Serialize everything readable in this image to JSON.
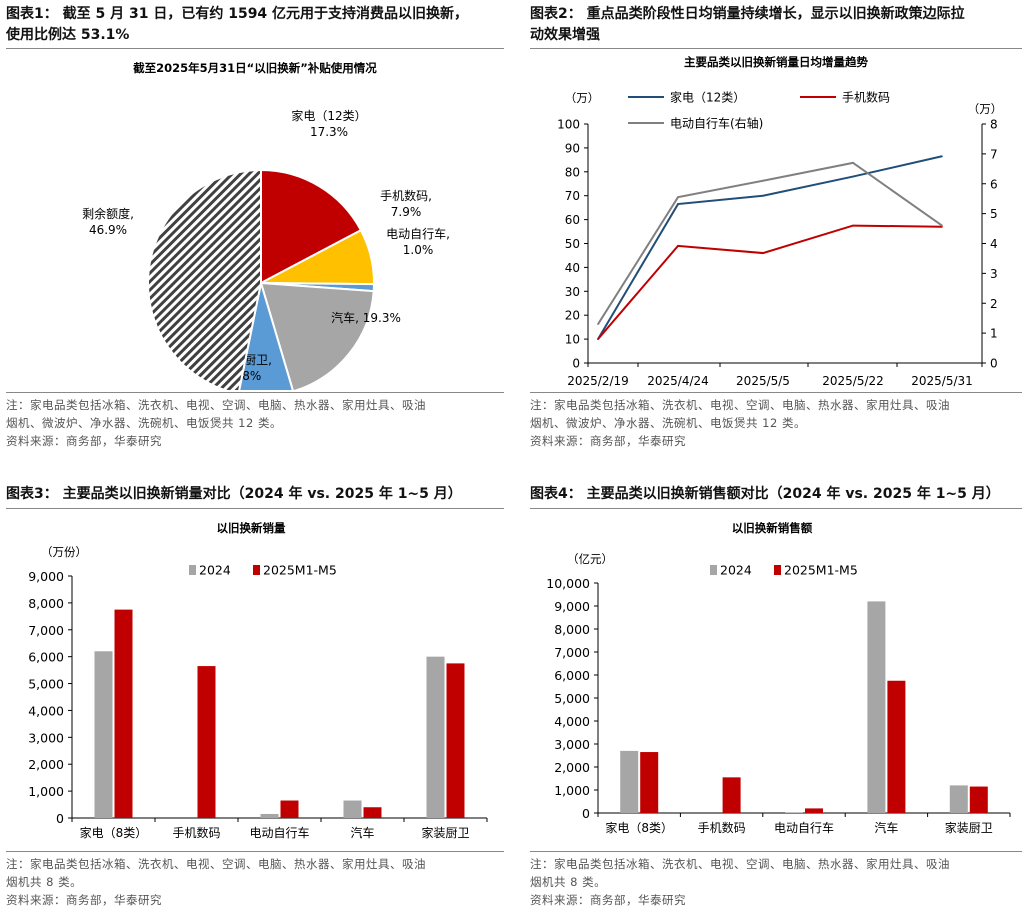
{
  "fig1": {
    "title_l1": "图表1： 截至 5 月 31 日，已有约 1594 亿元用于支持消费品以旧换新，",
    "title_l2": "使用比例达 53.1%",
    "note_l1": "注：家电品类包括冰箱、洗衣机、电视、空调、电脑、热水器、家用灶具、吸油",
    "note_l2": "烟机、微波炉、净水器、洗碗机、电饭煲共 12 类。",
    "source": "资料来源：商务部，华泰研究",
    "chart_data": {
      "type": "pie",
      "title": "截至2025年5月31日“以旧换新”补贴使用情况",
      "slices": [
        {
          "label": "家电（12类）",
          "value": 17.3,
          "value_label": "17.3%",
          "color": "#C00000"
        },
        {
          "label": "手机数码,",
          "value": 7.9,
          "value_label": "7.9%",
          "color": "#FFC000"
        },
        {
          "label": "电动自行车,",
          "value": 1.0,
          "value_label": "1.0%",
          "color": "#5B9BD5"
        },
        {
          "label": "汽车, 19.3%",
          "value": 19.3,
          "value_label": "",
          "color": "#A6A6A6"
        },
        {
          "label": "家装厨卫,",
          "value": 7.8,
          "value_label": "7.8%",
          "color": "#5B9BD5"
        },
        {
          "label": "剩余额度,",
          "value": 46.9,
          "value_label": "46.9%",
          "color": "hatch"
        }
      ]
    }
  },
  "fig2": {
    "title_l1": "图表2： 重点品类阶段性日均销量持续增长，显示以旧换新政策边际拉",
    "title_l2": "动效果增强",
    "note_l1": "注：家电品类包括冰箱、洗衣机、电视、空调、电脑、热水器、家用灶具、吸油",
    "note_l2": "烟机、微波炉、净水器、洗碗机、电饭煲共 12 类。",
    "source": "资料来源：商务部，华泰研究",
    "chart_data": {
      "type": "line",
      "title": "主要品类以旧换新销量日均增量趋势",
      "ylabel_left": "（万）",
      "ylabel_right": "（万）",
      "x": [
        "2025/2/19",
        "2025/4/24",
        "2025/5/5",
        "2025/5/22",
        "2025/5/31"
      ],
      "ylim_left": [
        0,
        100
      ],
      "yticks_left": [
        "0",
        "10",
        "20",
        "30",
        "40",
        "50",
        "60",
        "70",
        "80",
        "90",
        "100"
      ],
      "ylim_right": [
        0,
        8
      ],
      "yticks_right": [
        "0",
        "1",
        "2",
        "3",
        "4",
        "5",
        "6",
        "7",
        "8"
      ],
      "series": [
        {
          "name": "家电（12类）",
          "axis": "left",
          "color": "#1F4E79",
          "values": [
            10,
            66.5,
            70,
            78,
            86.5
          ]
        },
        {
          "name": "手机数码",
          "axis": "left",
          "color": "#C00000",
          "values": [
            10,
            49,
            46,
            57.5,
            57
          ]
        },
        {
          "name": "电动自行车(右轴)",
          "axis": "right",
          "color": "#808080",
          "values": [
            1.3,
            5.55,
            6.1,
            6.7,
            4.6
          ]
        }
      ]
    }
  },
  "fig3": {
    "title_l1": "图表3： 主要品类以旧换新销量对比（2024 年 vs. 2025 年 1~5 月）",
    "note_l1": "注：家电品类包括冰箱、洗衣机、电视、空调、电脑、热水器、家用灶具、吸油",
    "note_l2": "烟机共 8 类。",
    "source": "资料来源：商务部，华泰研究",
    "chart_data": {
      "type": "bar",
      "title": "以旧换新销量",
      "ylabel": "（万份）",
      "categories": [
        "家电（8类）",
        "手机数码",
        "电动自行车",
        "汽车",
        "家装厨卫"
      ],
      "ylim": [
        0,
        9000
      ],
      "yticks": [
        "0",
        "1,000",
        "2,000",
        "3,000",
        "4,000",
        "5,000",
        "6,000",
        "7,000",
        "8,000",
        "9,000"
      ],
      "series": [
        {
          "name": "2024",
          "color": "#A6A6A6",
          "values": [
            6200,
            0,
            150,
            650,
            6000
          ]
        },
        {
          "name": "2025M1-M5",
          "color": "#C00000",
          "values": [
            7750,
            5650,
            650,
            400,
            5750
          ]
        }
      ]
    }
  },
  "fig4": {
    "title_l1": "图表4： 主要品类以旧换新销售额对比（2024 年 vs. 2025 年 1~5 月）",
    "note_l1": "注：家电品类包括冰箱、洗衣机、电视、空调、电脑、热水器、家用灶具、吸油",
    "note_l2": "烟机共 8 类。",
    "source": "资料来源：商务部，华泰研究",
    "chart_data": {
      "type": "bar",
      "title": "以旧换新销售额",
      "ylabel": "（亿元）",
      "categories": [
        "家电（8类）",
        "手机数码",
        "电动自行车",
        "汽车",
        "家装厨卫"
      ],
      "ylim": [
        0,
        10000
      ],
      "yticks": [
        "0",
        "1,000",
        "2,000",
        "3,000",
        "4,000",
        "5,000",
        "6,000",
        "7,000",
        "8,000",
        "9,000",
        "10,000"
      ],
      "series": [
        {
          "name": "2024",
          "color": "#A6A6A6",
          "values": [
            2700,
            0,
            30,
            9200,
            1200
          ]
        },
        {
          "name": "2025M1-M5",
          "color": "#C00000",
          "values": [
            2650,
            1550,
            200,
            5750,
            1150
          ]
        }
      ]
    }
  }
}
